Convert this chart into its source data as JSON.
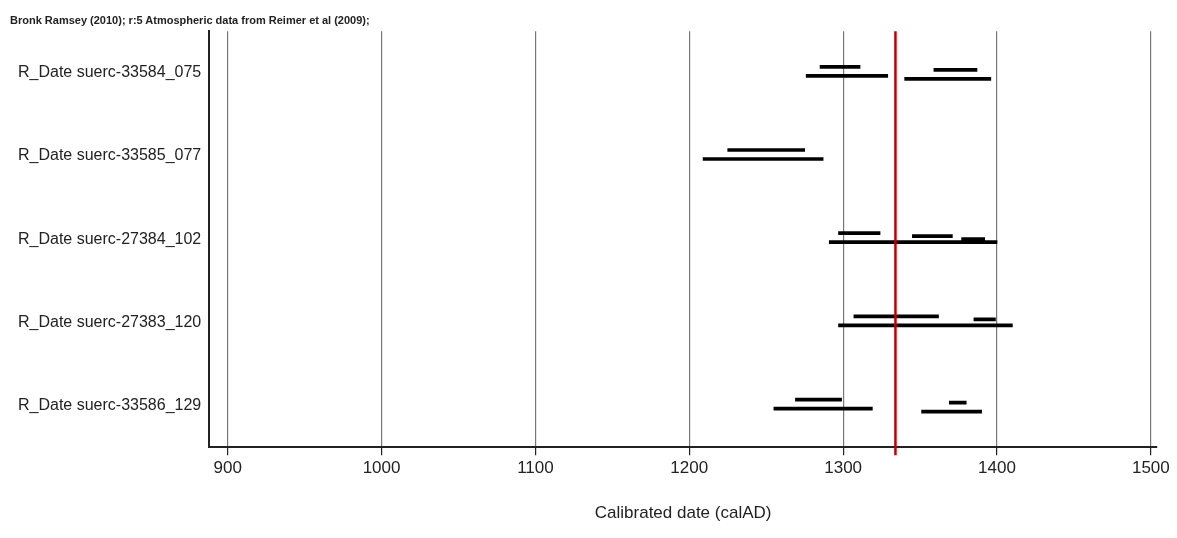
{
  "chart_data": {
    "type": "bar",
    "orientation": "horizontal",
    "title": "Bronk Ramsey (2010); r:5 Atmospheric data from Reimer et al (2009);",
    "xlabel": "Calibrated date (calAD)",
    "categories": [
      "R_Date suerc-33584_075",
      "R_Date suerc-33585_077",
      "R_Date suerc-27384_102",
      "R_Date suerc-27383_120",
      "R_Date suerc-33586_129"
    ],
    "series": [
      {
        "color": "#000000",
        "base": [
          1285,
          1225,
          1297,
          1307,
          1269
        ],
        "values": [
          26,
          50,
          27,
          55,
          30
        ]
      },
      {
        "color": "#000000",
        "base": [
          1359,
          null,
          1345,
          1385,
          1369
        ],
        "values": [
          28,
          null,
          26,
          14,
          11
        ]
      },
      {
        "color": "#000000",
        "base": [
          null,
          null,
          1377,
          null,
          null
        ],
        "values": [
          null,
          null,
          15,
          null,
          null
        ]
      },
      {
        "color": "#000000",
        "base": [
          1276,
          1209,
          1291,
          1297,
          1255
        ],
        "values": [
          53,
          78,
          109,
          113,
          64
        ]
      },
      {
        "color": "#000000",
        "base": [
          1340,
          null,
          null,
          null,
          1351
        ],
        "values": [
          56,
          null,
          null,
          null,
          39
        ]
      }
    ],
    "xlim": [
      888,
      1504
    ],
    "xticks": [
      900,
      1000,
      1100,
      1200,
      1300,
      1400,
      1500
    ],
    "ref_lines": [
      {
        "axis": "x",
        "value": 1334,
        "color": "#c00000"
      }
    ],
    "grid": "x",
    "legend": false
  }
}
